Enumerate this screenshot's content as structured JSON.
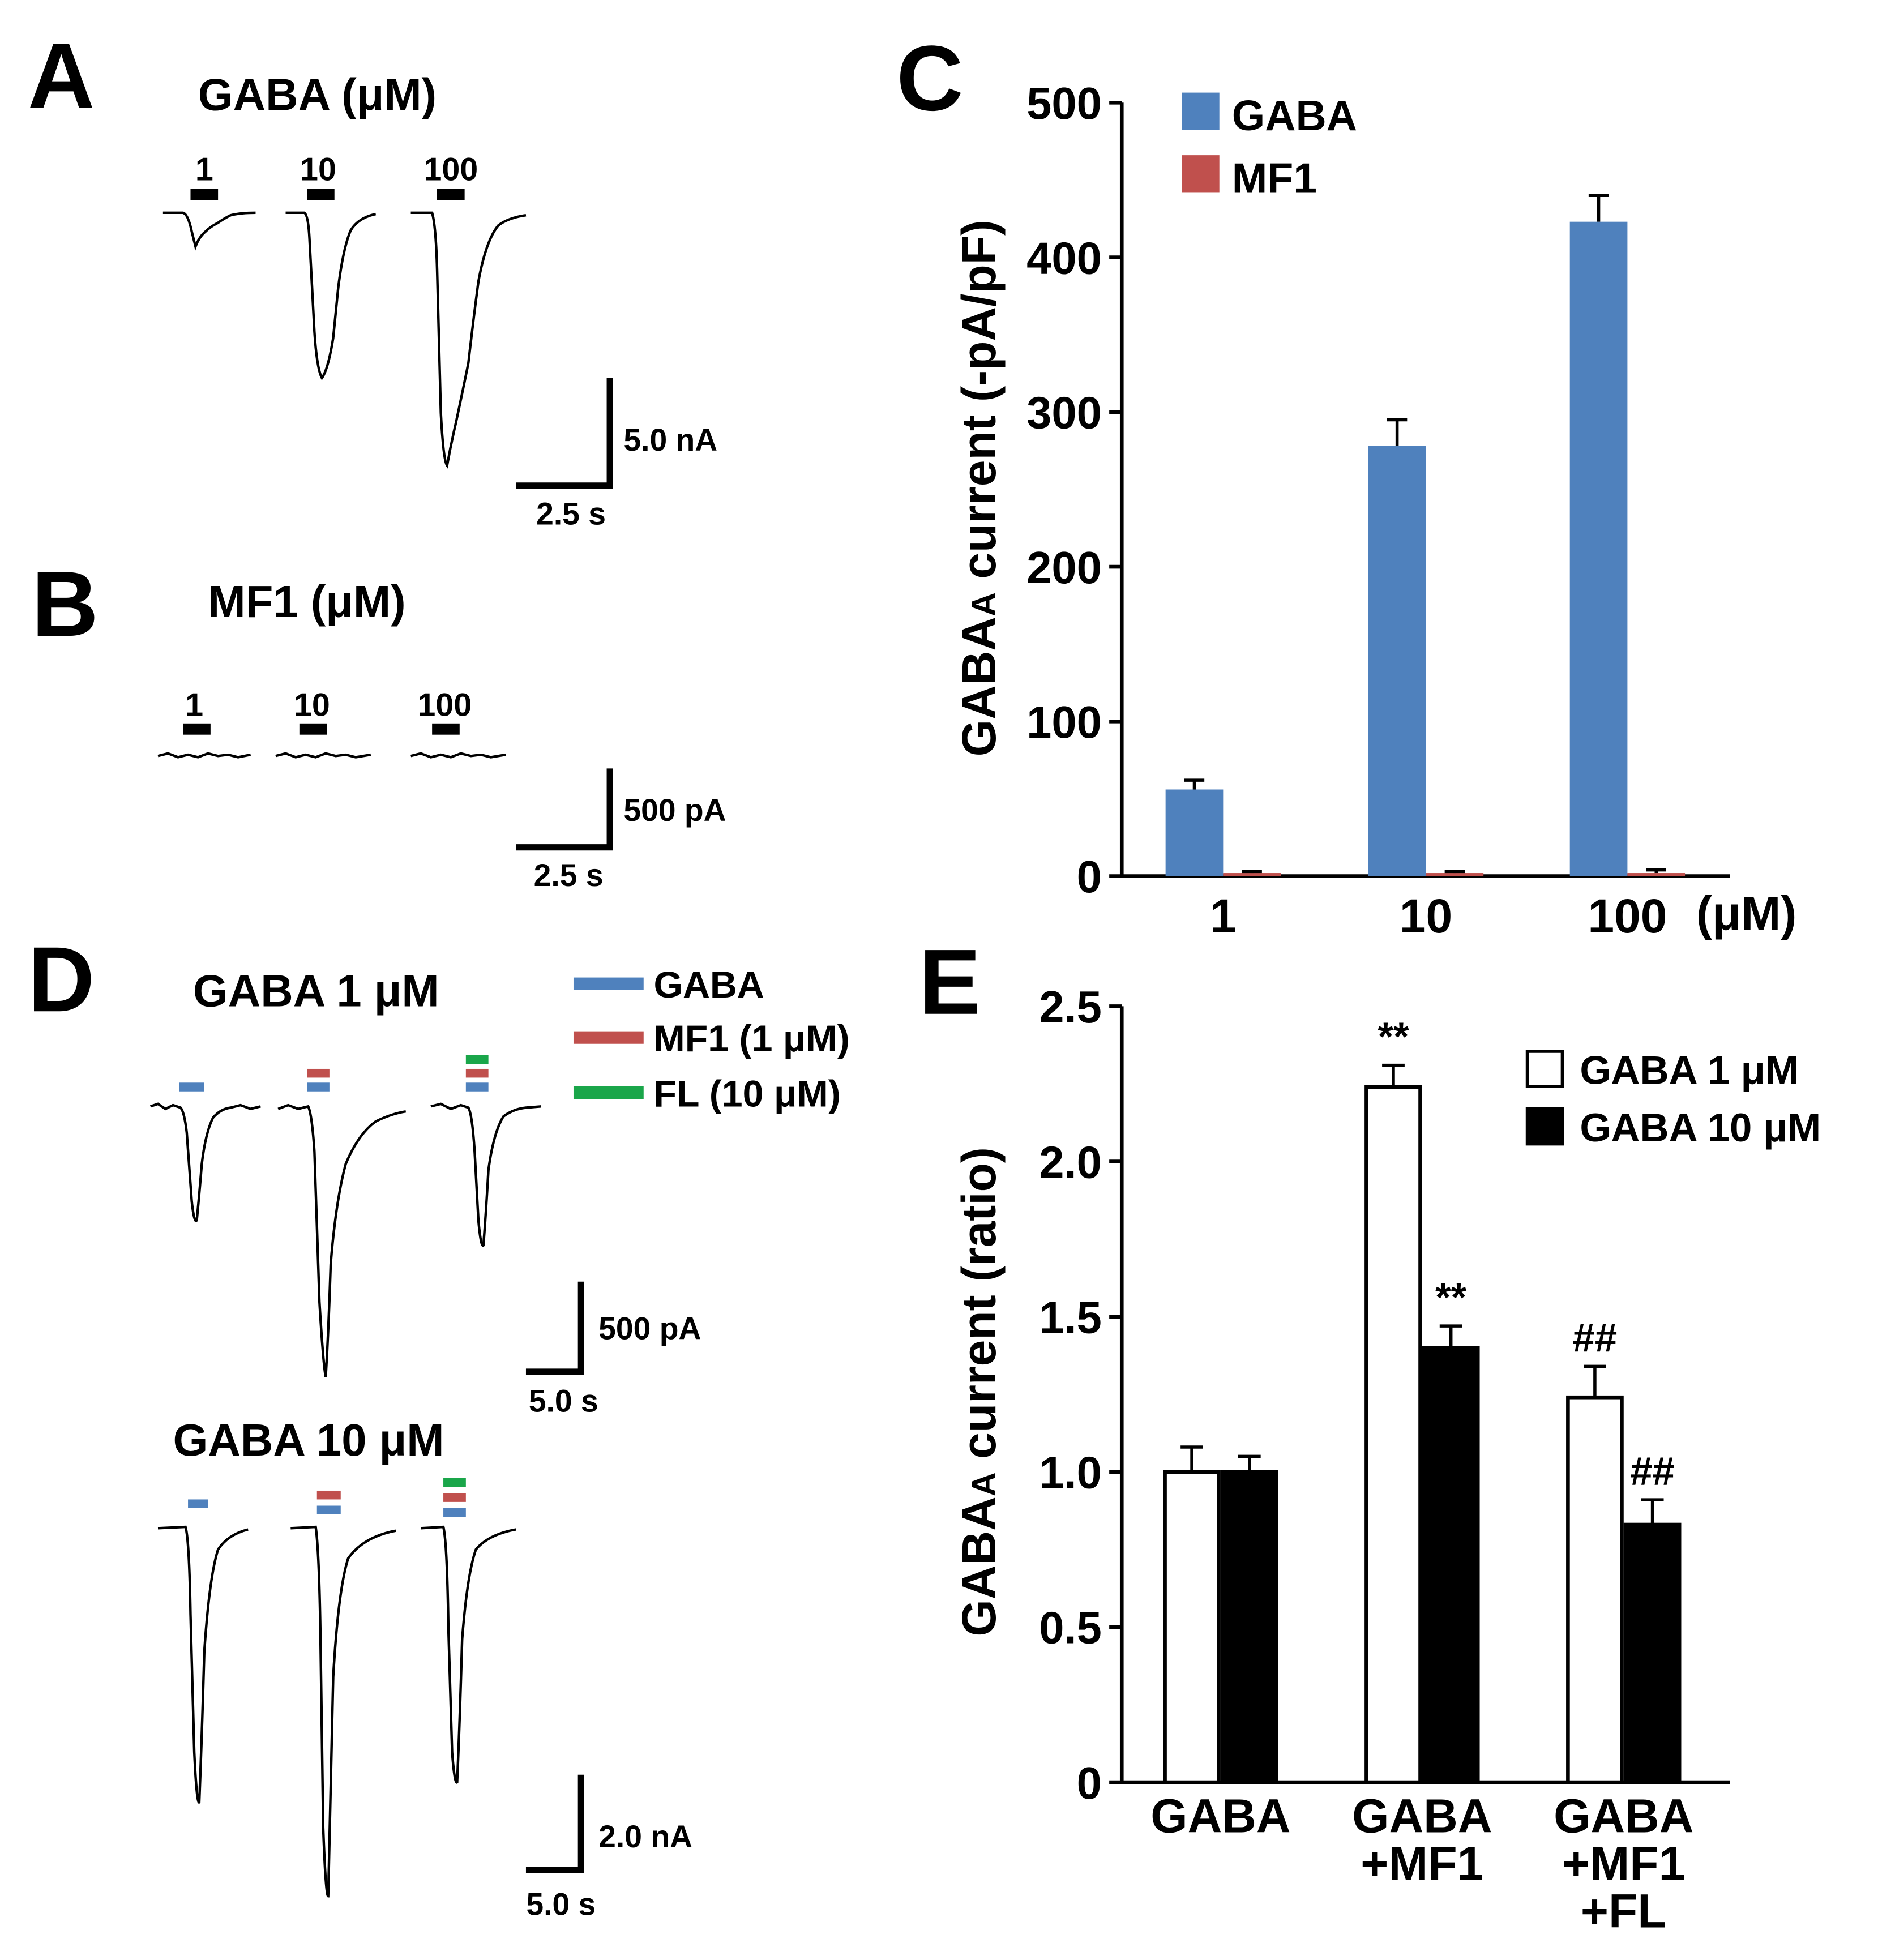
{
  "colors": {
    "gaba": "#4f81bd",
    "mf1": "#c0504d",
    "fl": "#1aa64a",
    "black": "#000000",
    "white": "#ffffff"
  },
  "panel_A": {
    "letter": "A",
    "title": "GABA (μM)",
    "trace_labels": [
      "1",
      "10",
      "100"
    ],
    "scale_y": "5.0 nA",
    "scale_x": "2.5 s"
  },
  "panel_B": {
    "letter": "B",
    "title": "MF1 (μM)",
    "trace_labels": [
      "1",
      "10",
      "100"
    ],
    "scale_y": "500 pA",
    "scale_x": "2.5 s"
  },
  "panel_D": {
    "letter": "D",
    "title_top": "GABA 1 μM",
    "title_bottom": "GABA 10 μM",
    "legend": [
      "GABA",
      "MF1 (1 μM)",
      "FL (10 μM)"
    ],
    "scale_top_y": "500 pA",
    "scale_top_x": "5.0 s",
    "scale_bottom_y": "2.0 nA",
    "scale_bottom_x": "5.0 s"
  },
  "panel_C": {
    "letter": "C"
  },
  "panel_E": {
    "letter": "E"
  },
  "chart_data": [
    {
      "panel": "C",
      "type": "bar",
      "categories": [
        "1",
        "10",
        "100"
      ],
      "x_unit": "(μM)",
      "series": [
        {
          "name": "GABA",
          "values": [
            56,
            278,
            423
          ],
          "errors": [
            6,
            17,
            17
          ]
        },
        {
          "name": "MF1",
          "values": [
            2,
            2,
            2
          ],
          "errors": [
            1,
            1,
            2
          ]
        }
      ],
      "ylabel_main": "GABA",
      "ylabel_sub": "A",
      "ylabel_rest": " current (-pA/pF)",
      "ylim": [
        0,
        500
      ],
      "yticks": [
        0,
        100,
        200,
        300,
        400,
        500
      ],
      "ytick_labels": [
        "0",
        "100",
        "200",
        "300",
        "400",
        "500"
      ],
      "legend_position": "top-left"
    },
    {
      "panel": "E",
      "type": "bar",
      "categories": [
        [
          "GABA"
        ],
        [
          "GABA",
          "+MF1"
        ],
        [
          "GABA",
          "+MF1",
          "+FL"
        ]
      ],
      "series": [
        {
          "name": "GABA 1 μM",
          "values": [
            1.0,
            2.24,
            1.24
          ],
          "errors": [
            0.08,
            0.07,
            0.1
          ],
          "marks": [
            "",
            "**",
            "##"
          ]
        },
        {
          "name": "GABA 10 μM",
          "values": [
            1.0,
            1.4,
            0.83
          ],
          "errors": [
            0.05,
            0.07,
            0.08
          ],
          "marks": [
            "",
            "**",
            "##"
          ]
        }
      ],
      "ylabel_main": "GABA",
      "ylabel_sub": "A",
      "ylabel_rest": " current (ratio)",
      "ylim": [
        0,
        2.5
      ],
      "yticks": [
        0,
        0.5,
        1.0,
        1.5,
        2.0,
        2.5
      ],
      "ytick_labels": [
        "0",
        "0.5",
        "1.0",
        "1.5",
        "2.0",
        "2.5"
      ],
      "legend_position": "top-right"
    }
  ]
}
